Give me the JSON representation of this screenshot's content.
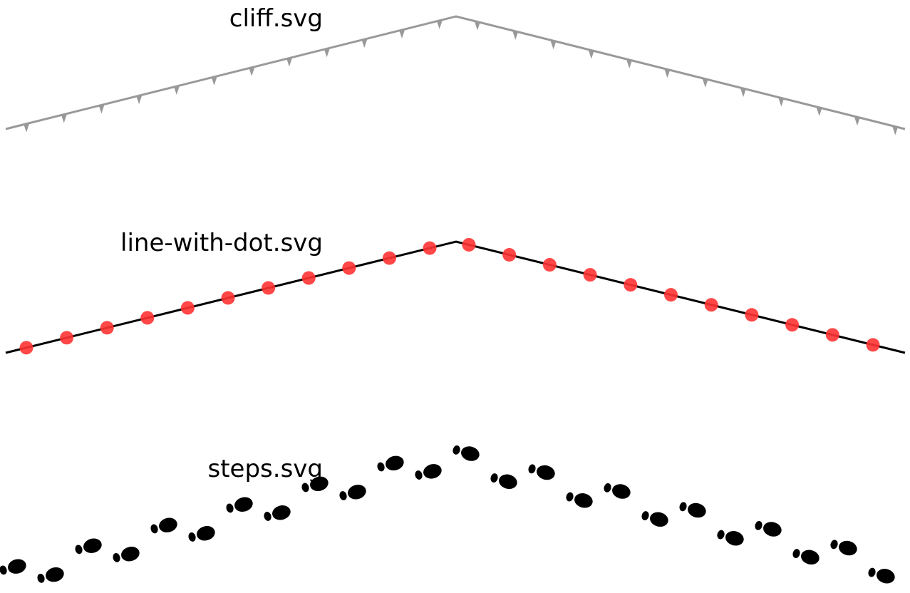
{
  "patterns": [
    {
      "label": "cliff.svg"
    },
    {
      "label": "line-with-dot.svg"
    },
    {
      "label": "steps.svg"
    }
  ]
}
